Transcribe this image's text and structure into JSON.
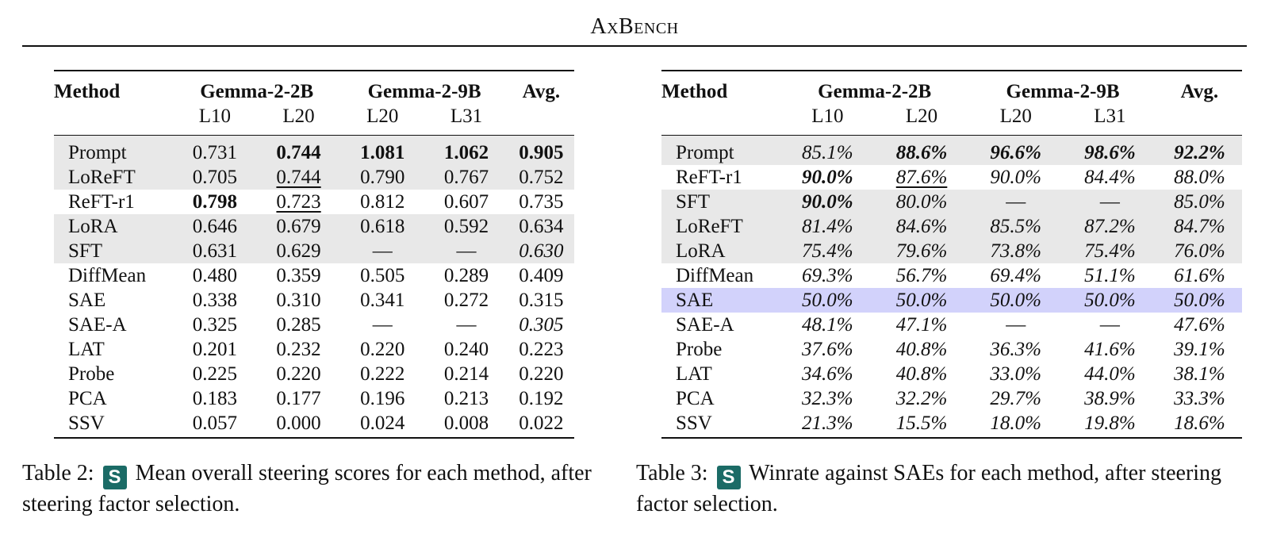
{
  "header": {
    "title": "AxBench"
  },
  "table2": {
    "caption": {
      "label": "Table 2:",
      "badge": "S",
      "text": "Mean overall steering scores for each method, after steering factor selection."
    },
    "columns": {
      "method": "Method",
      "group1": "Gemma-2-2B",
      "group2": "Gemma-2-9B",
      "avg": "Avg.",
      "sub": [
        "L10",
        "L20",
        "L20",
        "L31"
      ]
    },
    "rows": [
      {
        "method": "Prompt",
        "shade": true,
        "values": [
          "0.731",
          "0.744",
          "1.081",
          "1.062",
          "0.905"
        ],
        "bold": [
          1,
          2,
          3,
          4
        ],
        "underline": [],
        "italic": []
      },
      {
        "method": "LoReFT",
        "shade": true,
        "values": [
          "0.705",
          "0.744",
          "0.790",
          "0.767",
          "0.752"
        ],
        "bold": [],
        "underline": [
          1
        ],
        "italic": []
      },
      {
        "method": "ReFT-r1",
        "shade": false,
        "values": [
          "0.798",
          "0.723",
          "0.812",
          "0.607",
          "0.735"
        ],
        "bold": [
          0
        ],
        "underline": [
          1
        ],
        "italic": []
      },
      {
        "method": "LoRA",
        "shade": true,
        "values": [
          "0.646",
          "0.679",
          "0.618",
          "0.592",
          "0.634"
        ],
        "bold": [],
        "underline": [],
        "italic": []
      },
      {
        "method": "SFT",
        "shade": true,
        "values": [
          "0.631",
          "0.629",
          "—",
          "—",
          "0.630"
        ],
        "bold": [],
        "underline": [],
        "italic": [
          4
        ]
      },
      {
        "method": "DiffMean",
        "shade": false,
        "values": [
          "0.480",
          "0.359",
          "0.505",
          "0.289",
          "0.409"
        ],
        "bold": [],
        "underline": [],
        "italic": []
      },
      {
        "method": "SAE",
        "shade": false,
        "values": [
          "0.338",
          "0.310",
          "0.341",
          "0.272",
          "0.315"
        ],
        "bold": [],
        "underline": [],
        "italic": []
      },
      {
        "method": "SAE-A",
        "shade": false,
        "values": [
          "0.325",
          "0.285",
          "—",
          "—",
          "0.305"
        ],
        "bold": [],
        "underline": [],
        "italic": [
          4
        ]
      },
      {
        "method": "LAT",
        "shade": false,
        "values": [
          "0.201",
          "0.232",
          "0.220",
          "0.240",
          "0.223"
        ],
        "bold": [],
        "underline": [],
        "italic": []
      },
      {
        "method": "Probe",
        "shade": false,
        "values": [
          "0.225",
          "0.220",
          "0.222",
          "0.214",
          "0.220"
        ],
        "bold": [],
        "underline": [],
        "italic": []
      },
      {
        "method": "PCA",
        "shade": false,
        "values": [
          "0.183",
          "0.177",
          "0.196",
          "0.213",
          "0.192"
        ],
        "bold": [],
        "underline": [],
        "italic": []
      },
      {
        "method": "SSV",
        "shade": false,
        "values": [
          "0.057",
          "0.000",
          "0.024",
          "0.008",
          "0.022"
        ],
        "bold": [],
        "underline": [],
        "italic": []
      }
    ]
  },
  "table3": {
    "caption": {
      "label": "Table 3:",
      "badge": "S",
      "text": "Winrate against SAEs for each method, after steering factor selection."
    },
    "columns": {
      "method": "Method",
      "group1": "Gemma-2-2B",
      "group2": "Gemma-2-9B",
      "avg": "Avg.",
      "sub": [
        "L10",
        "L20",
        "L20",
        "L31"
      ]
    },
    "rows": [
      {
        "method": "Prompt",
        "row_style": "shade",
        "values": [
          "85.1%",
          "88.6%",
          "96.6%",
          "98.6%",
          "92.2%"
        ],
        "bold": [
          1,
          2,
          3,
          4
        ],
        "underline": []
      },
      {
        "method": "ReFT-r1",
        "row_style": "none",
        "values": [
          "90.0%",
          "87.6%",
          "90.0%",
          "84.4%",
          "88.0%"
        ],
        "bold": [
          0
        ],
        "underline": [
          1
        ]
      },
      {
        "method": "SFT",
        "row_style": "shade",
        "values": [
          "90.0%",
          "80.0%",
          "—",
          "—",
          "85.0%"
        ],
        "bold": [
          0
        ],
        "underline": []
      },
      {
        "method": "LoReFT",
        "row_style": "shade",
        "values": [
          "81.4%",
          "84.6%",
          "85.5%",
          "87.2%",
          "84.7%"
        ],
        "bold": [],
        "underline": []
      },
      {
        "method": "LoRA",
        "row_style": "shade",
        "values": [
          "75.4%",
          "79.6%",
          "73.8%",
          "75.4%",
          "76.0%"
        ],
        "bold": [],
        "underline": []
      },
      {
        "method": "DiffMean",
        "row_style": "none",
        "values": [
          "69.3%",
          "56.7%",
          "69.4%",
          "51.1%",
          "61.6%"
        ],
        "bold": [],
        "underline": []
      },
      {
        "method": "SAE",
        "row_style": "highlight",
        "values": [
          "50.0%",
          "50.0%",
          "50.0%",
          "50.0%",
          "50.0%"
        ],
        "bold": [],
        "underline": []
      },
      {
        "method": "SAE-A",
        "row_style": "none",
        "values": [
          "48.1%",
          "47.1%",
          "—",
          "—",
          "47.6%"
        ],
        "bold": [],
        "underline": []
      },
      {
        "method": "Probe",
        "row_style": "none",
        "values": [
          "37.6%",
          "40.8%",
          "36.3%",
          "41.6%",
          "39.1%"
        ],
        "bold": [],
        "underline": []
      },
      {
        "method": "LAT",
        "row_style": "none",
        "values": [
          "34.6%",
          "40.8%",
          "33.0%",
          "44.0%",
          "38.1%"
        ],
        "bold": [],
        "underline": []
      },
      {
        "method": "PCA",
        "row_style": "none",
        "values": [
          "32.3%",
          "32.2%",
          "29.7%",
          "38.9%",
          "33.3%"
        ],
        "bold": [],
        "underline": []
      },
      {
        "method": "SSV",
        "row_style": "none",
        "values": [
          "21.3%",
          "15.5%",
          "18.0%",
          "19.8%",
          "18.6%"
        ],
        "bold": [],
        "underline": []
      }
    ]
  },
  "colors": {
    "shade": "#e8e8e8",
    "highlight": "#d2d2fb",
    "badge": "#1b6b66"
  }
}
